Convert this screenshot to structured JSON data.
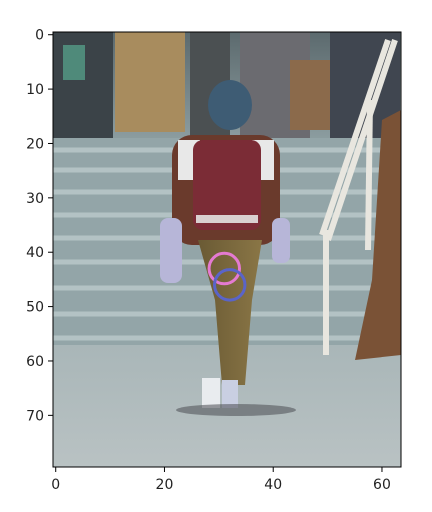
{
  "image_description_free": true,
  "axes": {
    "x_ticks": [
      "0",
      "20",
      "40",
      "60"
    ],
    "y_ticks": [
      "0",
      "10",
      "20",
      "30",
      "40",
      "50",
      "60",
      "70"
    ],
    "x_tick_values": [
      0,
      20,
      40,
      60
    ],
    "y_tick_values": [
      0,
      10,
      20,
      30,
      40,
      50,
      60,
      70
    ],
    "xlim": [
      -0.5,
      63.5
    ],
    "ylim": [
      79.5,
      -0.5
    ]
  },
  "markers": [
    {
      "kind": "circle",
      "color": "#e57ad1",
      "cx": 31,
      "cy": 43
    },
    {
      "kind": "circle",
      "color": "#5a64c8",
      "cx": 32,
      "cy": 46
    }
  ],
  "colors": {
    "frame": "#000000",
    "background": "#ffffff"
  }
}
